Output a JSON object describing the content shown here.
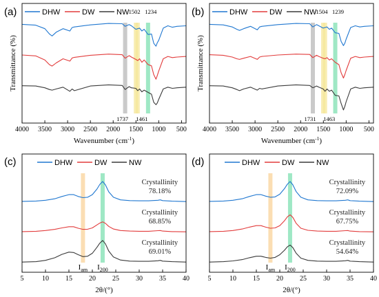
{
  "colors": {
    "DHW": "#1f77d0",
    "DW": "#e23b3b",
    "NW": "#3a3a3a",
    "band_gray": "#b8b8b8",
    "band_yellow": "#f5e79a",
    "band_green": "#7fe0b2",
    "band_orange": "#f9d39a"
  },
  "chart_data": [
    {
      "panel": "(a)",
      "type": "line",
      "xlabel": "Wavenumber (cm",
      "xlabel_sup": "-1",
      "xlabel_tail": ")",
      "ylabel": "Transmittance (%)",
      "xlim": [
        4000,
        400
      ],
      "xticks": [
        4000,
        3500,
        3000,
        2500,
        2000,
        1500,
        1000,
        500
      ],
      "legend": [
        "DHW",
        "DW",
        "NW"
      ],
      "band_labels_top": [
        "1502",
        "1234"
      ],
      "band_labels_bottom": [
        "1737",
        "1461"
      ],
      "bands": [
        {
          "x": 1737,
          "color_key": "band_gray"
        },
        {
          "x": 1502,
          "color_key": "band_yellow"
        },
        {
          "x": 1461,
          "color_key": "band_yellow"
        },
        {
          "x": 1234,
          "color_key": "band_green"
        }
      ],
      "series": [
        {
          "name": "DHW",
          "offset": 2.0,
          "x": [
            4000,
            3700,
            3500,
            3400,
            3340,
            3250,
            3100,
            2950,
            2900,
            2850,
            2500,
            2100,
            1800,
            1737,
            1650,
            1600,
            1502,
            1461,
            1420,
            1370,
            1320,
            1234,
            1160,
            1110,
            1060,
            1030,
            1000,
            900,
            800,
            700,
            600,
            400
          ],
          "y": [
            0.95,
            0.92,
            0.8,
            0.62,
            0.55,
            0.68,
            0.8,
            0.72,
            0.84,
            0.86,
            0.93,
            0.98,
            0.97,
            0.88,
            0.94,
            0.9,
            0.78,
            0.8,
            0.82,
            0.72,
            0.78,
            0.6,
            0.62,
            0.3,
            0.2,
            0.32,
            0.4,
            0.82,
            0.9,
            0.85,
            0.88,
            0.9
          ]
        },
        {
          "name": "DW",
          "offset": 1.0,
          "x": [
            4000,
            3700,
            3500,
            3400,
            3340,
            3250,
            3100,
            2950,
            2900,
            2850,
            2500,
            2100,
            1800,
            1737,
            1650,
            1600,
            1502,
            1461,
            1420,
            1370,
            1320,
            1234,
            1160,
            1110,
            1060,
            1030,
            1000,
            900,
            800,
            700,
            600,
            400
          ],
          "y": [
            0.95,
            0.92,
            0.78,
            0.62,
            0.57,
            0.68,
            0.82,
            0.74,
            0.85,
            0.87,
            0.94,
            0.98,
            0.96,
            0.84,
            0.93,
            0.88,
            0.8,
            0.76,
            0.82,
            0.7,
            0.78,
            0.62,
            0.58,
            0.28,
            0.12,
            0.25,
            0.4,
            0.82,
            0.9,
            0.86,
            0.88,
            0.9
          ]
        },
        {
          "name": "NW",
          "offset": 0.0,
          "x": [
            4000,
            3700,
            3500,
            3400,
            3340,
            3250,
            3100,
            2950,
            2900,
            2850,
            2500,
            2100,
            1800,
            1737,
            1650,
            1600,
            1502,
            1461,
            1420,
            1370,
            1320,
            1234,
            1160,
            1110,
            1060,
            1030,
            1000,
            900,
            800,
            700,
            600,
            400
          ],
          "y": [
            0.95,
            0.94,
            0.88,
            0.82,
            0.8,
            0.84,
            0.9,
            0.76,
            0.84,
            0.78,
            0.94,
            0.98,
            0.96,
            0.82,
            0.92,
            0.88,
            0.86,
            0.78,
            0.84,
            0.74,
            0.8,
            0.72,
            0.66,
            0.38,
            0.3,
            0.36,
            0.48,
            0.84,
            0.9,
            0.86,
            0.88,
            0.9
          ]
        }
      ]
    },
    {
      "panel": "(b)",
      "type": "line",
      "xlabel": "Wavenumber (cm",
      "xlabel_sup": "-1",
      "xlabel_tail": ")",
      "ylabel": "Transmittance (%)",
      "xlim": [
        4000,
        400
      ],
      "xticks": [
        4000,
        3500,
        3000,
        2500,
        2000,
        1500,
        1000,
        500
      ],
      "legend": [
        "DHW",
        "DW",
        "NW"
      ],
      "band_labels_top": [
        "1504",
        "1239"
      ],
      "band_labels_bottom": [
        "1731",
        "1463"
      ],
      "bands": [
        {
          "x": 1731,
          "color_key": "band_gray"
        },
        {
          "x": 1504,
          "color_key": "band_yellow"
        },
        {
          "x": 1463,
          "color_key": "band_yellow"
        },
        {
          "x": 1239,
          "color_key": "band_green"
        }
      ],
      "series": [
        {
          "name": "DHW",
          "offset": 2.0,
          "x": [
            4000,
            3700,
            3500,
            3400,
            3340,
            3250,
            3100,
            2950,
            2900,
            2850,
            2500,
            2100,
            1800,
            1731,
            1650,
            1600,
            1504,
            1463,
            1420,
            1370,
            1320,
            1239,
            1160,
            1110,
            1060,
            1030,
            1000,
            900,
            800,
            700,
            600,
            400
          ],
          "y": [
            0.95,
            0.93,
            0.86,
            0.78,
            0.74,
            0.8,
            0.88,
            0.76,
            0.86,
            0.88,
            0.94,
            0.98,
            0.97,
            0.86,
            0.94,
            0.9,
            0.82,
            0.84,
            0.86,
            0.78,
            0.82,
            0.66,
            0.64,
            0.36,
            0.22,
            0.3,
            0.44,
            0.84,
            0.9,
            0.86,
            0.88,
            0.9
          ]
        },
        {
          "name": "DW",
          "offset": 1.0,
          "x": [
            4000,
            3700,
            3500,
            3400,
            3340,
            3250,
            3100,
            2950,
            2900,
            2850,
            2500,
            2100,
            1800,
            1731,
            1650,
            1600,
            1504,
            1463,
            1420,
            1370,
            1320,
            1239,
            1160,
            1110,
            1060,
            1030,
            1000,
            900,
            800,
            700,
            600,
            400
          ],
          "y": [
            0.96,
            0.94,
            0.88,
            0.82,
            0.8,
            0.84,
            0.9,
            0.8,
            0.88,
            0.9,
            0.95,
            0.98,
            0.97,
            0.86,
            0.94,
            0.9,
            0.84,
            0.82,
            0.86,
            0.78,
            0.82,
            0.7,
            0.62,
            0.34,
            0.16,
            0.28,
            0.42,
            0.84,
            0.9,
            0.86,
            0.88,
            0.9
          ]
        },
        {
          "name": "NW",
          "offset": 0.0,
          "x": [
            4000,
            3700,
            3500,
            3400,
            3340,
            3250,
            3100,
            2950,
            2900,
            2850,
            2500,
            2100,
            1800,
            1731,
            1650,
            1600,
            1504,
            1463,
            1420,
            1370,
            1320,
            1239,
            1160,
            1110,
            1060,
            1030,
            1000,
            900,
            800,
            700,
            600,
            400
          ],
          "y": [
            0.95,
            0.94,
            0.88,
            0.82,
            0.78,
            0.84,
            0.9,
            0.8,
            0.86,
            0.84,
            0.94,
            0.98,
            0.96,
            0.88,
            0.94,
            0.9,
            0.84,
            0.76,
            0.84,
            0.76,
            0.8,
            0.62,
            0.6,
            0.34,
            0.12,
            0.24,
            0.4,
            0.84,
            0.9,
            0.86,
            0.88,
            0.9
          ]
        }
      ]
    },
    {
      "panel": "(c)",
      "type": "line",
      "xlabel": "2θ/(°)",
      "ylabel": "",
      "xlim": [
        5,
        40
      ],
      "xticks": [
        5,
        10,
        15,
        20,
        25,
        30,
        35,
        40
      ],
      "legend": [
        "DHW",
        "DW",
        "NW"
      ],
      "bands": [
        {
          "x": 18.0,
          "color_key": "band_orange"
        },
        {
          "x": 22.2,
          "color_key": "band_green"
        }
      ],
      "peak_labels": [
        {
          "text": "I",
          "sub": "am",
          "x": 18.0
        },
        {
          "text": "I",
          "sub": "200",
          "x": 22.2
        }
      ],
      "crystallinity": [
        {
          "series": "DHW",
          "label": "Crystallinity",
          "value": "78.18%"
        },
        {
          "series": "DW",
          "label": "Crystallinity",
          "value": "68.85%"
        },
        {
          "series": "NW",
          "label": "Crystallinity",
          "value": "69.01%"
        }
      ],
      "series": [
        {
          "name": "DHW",
          "offset": 2.0,
          "x": [
            5,
            8,
            10,
            12,
            13.5,
            15,
            16,
            17,
            18,
            19,
            20,
            21,
            21.6,
            22.2,
            22.8,
            23.5,
            24.5,
            26,
            28,
            30,
            32,
            34,
            34.5,
            35,
            37,
            40
          ],
          "y": [
            0.04,
            0.06,
            0.1,
            0.18,
            0.3,
            0.4,
            0.4,
            0.3,
            0.24,
            0.26,
            0.4,
            0.7,
            0.95,
            1.1,
            0.92,
            0.55,
            0.26,
            0.12,
            0.08,
            0.07,
            0.07,
            0.1,
            0.12,
            0.08,
            0.05,
            0.03
          ]
        },
        {
          "name": "DW",
          "offset": 1.0,
          "x": [
            5,
            8,
            10,
            12,
            13.5,
            15,
            16,
            17,
            18,
            19,
            20,
            21,
            21.6,
            22.2,
            22.8,
            23.5,
            24.5,
            26,
            28,
            30,
            32,
            34,
            34.5,
            35,
            37,
            40
          ],
          "y": [
            0.04,
            0.06,
            0.1,
            0.16,
            0.24,
            0.3,
            0.3,
            0.22,
            0.16,
            0.17,
            0.24,
            0.4,
            0.5,
            0.56,
            0.48,
            0.32,
            0.18,
            0.1,
            0.07,
            0.06,
            0.06,
            0.09,
            0.1,
            0.07,
            0.04,
            0.03
          ]
        },
        {
          "name": "NW",
          "offset": 0.0,
          "x": [
            5,
            8,
            10,
            12,
            13.5,
            15,
            16,
            17,
            18,
            19,
            20,
            21,
            21.6,
            22.2,
            22.8,
            23.5,
            24.5,
            26,
            28,
            30,
            32,
            34,
            34.5,
            35,
            37,
            40
          ],
          "y": [
            0.03,
            0.05,
            0.12,
            0.26,
            0.44,
            0.56,
            0.54,
            0.42,
            0.32,
            0.34,
            0.5,
            0.82,
            1.04,
            1.18,
            1.0,
            0.62,
            0.3,
            0.14,
            0.08,
            0.07,
            0.07,
            0.1,
            0.12,
            0.08,
            0.05,
            0.03
          ]
        }
      ]
    },
    {
      "panel": "(d)",
      "type": "line",
      "xlabel": "2θ/(°)",
      "ylabel": "",
      "xlim": [
        5,
        40
      ],
      "xticks": [
        5,
        10,
        15,
        20,
        25,
        30,
        35,
        40
      ],
      "legend": [
        "DHW",
        "DW",
        "NW"
      ],
      "bands": [
        {
          "x": 18.0,
          "color_key": "band_orange"
        },
        {
          "x": 22.2,
          "color_key": "band_green"
        }
      ],
      "peak_labels": [
        {
          "text": "I",
          "sub": "am",
          "x": 18.0
        },
        {
          "text": "I",
          "sub": "200",
          "x": 22.2
        }
      ],
      "crystallinity": [
        {
          "series": "DHW",
          "label": "Crystallinity",
          "value": "72.09%"
        },
        {
          "series": "DW",
          "label": "Crystallinity",
          "value": "67.75%"
        },
        {
          "series": "NW",
          "label": "Crystallinity",
          "value": "54.64%"
        }
      ],
      "series": [
        {
          "name": "DHW",
          "offset": 2.0,
          "x": [
            5,
            8,
            10,
            12,
            13.5,
            15,
            16,
            17,
            18,
            19,
            20,
            21,
            21.6,
            22.2,
            22.8,
            23.5,
            24.5,
            26,
            28,
            30,
            32,
            34,
            34.5,
            35,
            37,
            40
          ],
          "y": [
            0.04,
            0.06,
            0.1,
            0.18,
            0.3,
            0.4,
            0.4,
            0.32,
            0.26,
            0.28,
            0.42,
            0.72,
            0.95,
            1.1,
            0.92,
            0.56,
            0.26,
            0.12,
            0.08,
            0.07,
            0.07,
            0.1,
            0.12,
            0.08,
            0.05,
            0.03
          ]
        },
        {
          "name": "DW",
          "offset": 1.0,
          "x": [
            5,
            8,
            10,
            12,
            13.5,
            15,
            16,
            17,
            18,
            19,
            20,
            21,
            21.6,
            22.2,
            22.8,
            23.5,
            24.5,
            26,
            28,
            30,
            32,
            34,
            34.5,
            35,
            37,
            40
          ],
          "y": [
            0.04,
            0.06,
            0.1,
            0.18,
            0.28,
            0.36,
            0.36,
            0.28,
            0.22,
            0.24,
            0.36,
            0.62,
            0.82,
            0.94,
            0.8,
            0.48,
            0.22,
            0.11,
            0.07,
            0.06,
            0.06,
            0.09,
            0.1,
            0.07,
            0.04,
            0.03
          ]
        },
        {
          "name": "NW",
          "offset": 0.0,
          "x": [
            5,
            8,
            10,
            12,
            13.5,
            15,
            16,
            17,
            18,
            19,
            20,
            21,
            21.6,
            22.2,
            22.8,
            23.5,
            24.5,
            26,
            28,
            30,
            32,
            34,
            34.5,
            35,
            37,
            40
          ],
          "y": [
            0.03,
            0.05,
            0.09,
            0.16,
            0.26,
            0.34,
            0.34,
            0.28,
            0.24,
            0.28,
            0.42,
            0.66,
            0.84,
            0.94,
            0.8,
            0.5,
            0.24,
            0.12,
            0.08,
            0.07,
            0.07,
            0.1,
            0.12,
            0.08,
            0.05,
            0.03
          ]
        }
      ]
    }
  ]
}
